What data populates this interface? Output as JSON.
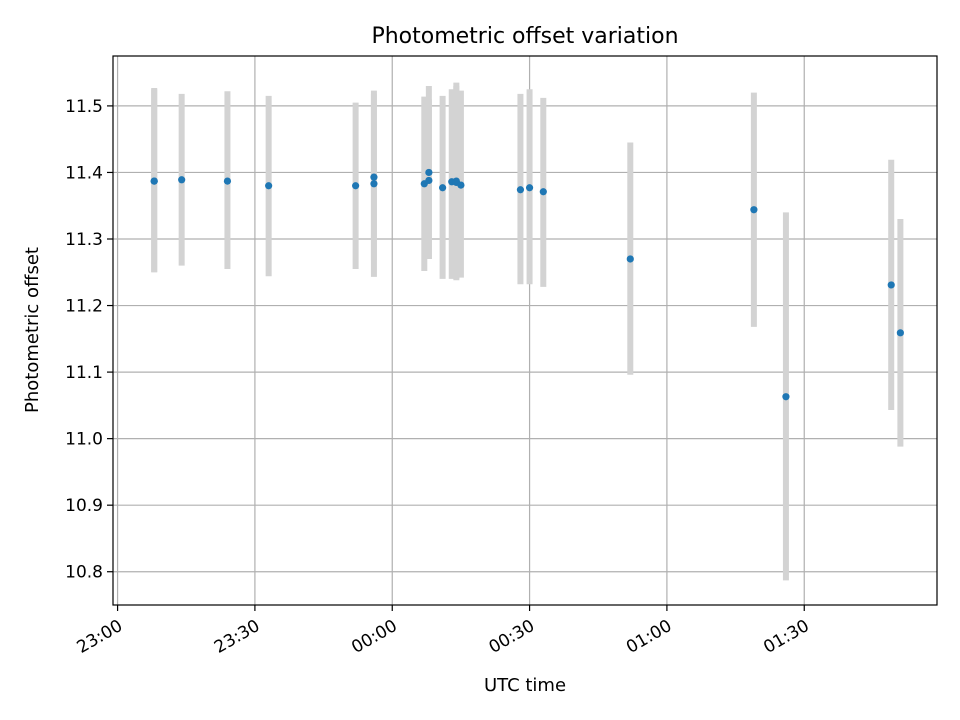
{
  "chart_data": {
    "type": "scatter",
    "title": "Photometric offset variation",
    "xlabel": "UTC time",
    "ylabel": "Photometric offset",
    "ylim": [
      10.75,
      11.575
    ],
    "xlim": [
      "22:59",
      "01:59"
    ],
    "xticks": [
      "23:00",
      "23:30",
      "00:00",
      "00:30",
      "01:00",
      "01:30"
    ],
    "yticks": [
      10.8,
      10.9,
      11.0,
      11.1,
      11.2,
      11.3,
      11.4,
      11.5
    ],
    "grid": true,
    "colors": {
      "point": "#1f77b4",
      "errorbar": "#d3d3d3",
      "grid": "#b0b0b0"
    },
    "points": [
      {
        "t": "23:08",
        "y": 11.387,
        "lo": 11.25,
        "hi": 11.525
      },
      {
        "t": "23:08",
        "y": 11.387,
        "lo": 11.25,
        "hi": 11.527
      },
      {
        "t": "23:14",
        "y": 11.389,
        "lo": 11.26,
        "hi": 11.518
      },
      {
        "t": "23:24",
        "y": 11.387,
        "lo": 11.255,
        "hi": 11.522
      },
      {
        "t": "23:33",
        "y": 11.38,
        "lo": 11.244,
        "hi": 11.515
      },
      {
        "t": "23:52",
        "y": 11.38,
        "lo": 11.255,
        "hi": 11.505
      },
      {
        "t": "23:56",
        "y": 11.393,
        "lo": 11.268,
        "hi": 11.518
      },
      {
        "t": "23:56",
        "y": 11.383,
        "lo": 11.243,
        "hi": 11.523
      },
      {
        "t": "00:07",
        "y": 11.383,
        "lo": 11.252,
        "hi": 11.514
      },
      {
        "t": "00:08",
        "y": 11.4,
        "lo": 11.27,
        "hi": 11.53
      },
      {
        "t": "00:08",
        "y": 11.388,
        "lo": 11.27,
        "hi": 11.51
      },
      {
        "t": "00:11",
        "y": 11.377,
        "lo": 11.24,
        "hi": 11.515
      },
      {
        "t": "00:13",
        "y": 11.386,
        "lo": 11.24,
        "hi": 11.525
      },
      {
        "t": "00:14",
        "y": 11.387,
        "lo": 11.238,
        "hi": 11.535
      },
      {
        "t": "00:14",
        "y": 11.385,
        "lo": 11.24,
        "hi": 11.53
      },
      {
        "t": "00:15",
        "y": 11.381,
        "lo": 11.242,
        "hi": 11.523
      },
      {
        "t": "00:28",
        "y": 11.374,
        "lo": 11.232,
        "hi": 11.518
      },
      {
        "t": "00:30",
        "y": 11.377,
        "lo": 11.232,
        "hi": 11.525
      },
      {
        "t": "00:33",
        "y": 11.371,
        "lo": 11.228,
        "hi": 11.512
      },
      {
        "t": "00:52",
        "y": 11.27,
        "lo": 11.096,
        "hi": 11.445
      },
      {
        "t": "01:19",
        "y": 11.344,
        "lo": 11.168,
        "hi": 11.52
      },
      {
        "t": "01:26",
        "y": 11.063,
        "lo": 10.787,
        "hi": 11.34
      },
      {
        "t": "01:49",
        "y": 11.231,
        "lo": 11.043,
        "hi": 11.419
      },
      {
        "t": "01:51",
        "y": 11.159,
        "lo": 10.988,
        "hi": 11.33
      }
    ]
  }
}
